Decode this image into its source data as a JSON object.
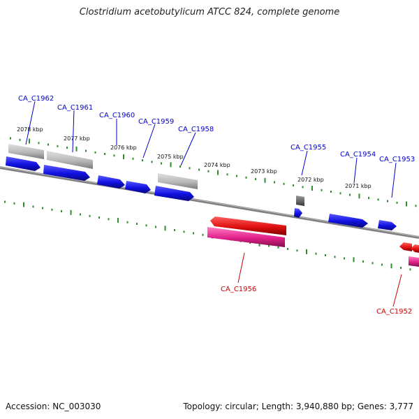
{
  "title": "Clostridium acetobutylicum ATCC 824, complete genome",
  "footer": {
    "accession": "Accession: NC_003030",
    "summary": "Topology: circular; Length: 3,940,880 bp; Genes: 3,777"
  },
  "colors": {
    "forward_gene": "#1010e0",
    "reverse_gene": "#e01010",
    "reverse_rna": "#e0208a",
    "forward_gray": "#b8b8b8",
    "dark_gray": "#666666",
    "backbone": "#808080",
    "tick": "#2f8f2f",
    "label_forward": "#0000cc",
    "label_reverse": "#cc0000"
  },
  "kbp_labels": [
    "2078 kbp",
    "2077 kbp",
    "2076 kbp",
    "2075 kbp",
    "2074 kbp",
    "2073 kbp",
    "2072 kbp",
    "2071 kbp"
  ],
  "gene_labels": {
    "forward": [
      "CA_C1962",
      "CA_C1961",
      "CA_C1960",
      "CA_C1959",
      "CA_C1958",
      "CA_C1955",
      "CA_C1954",
      "CA_C1953"
    ],
    "reverse": [
      "CA_C1956",
      "CA_C1952"
    ]
  }
}
